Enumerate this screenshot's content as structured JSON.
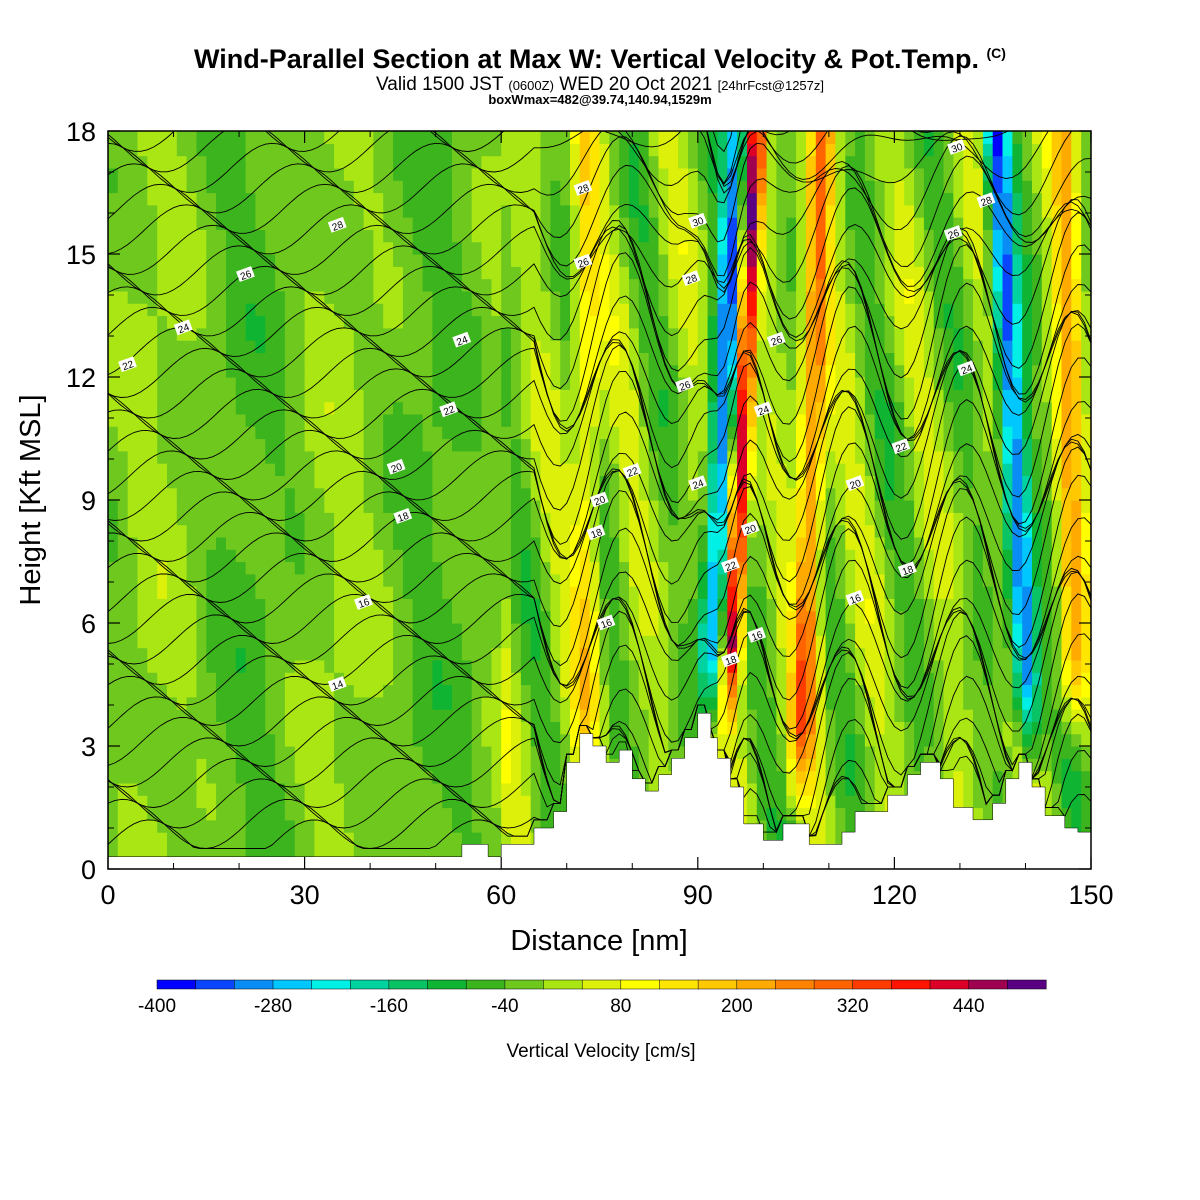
{
  "titles": {
    "main": "Wind-Parallel Section at Max W: Vertical Velocity & Pot.Temp.",
    "copyright": "(C)",
    "valid_pre": "Valid 1500 JST",
    "valid_z": "(0600Z)",
    "valid_post": "WED 20 Oct 2021",
    "forecast": "[24hrFcst@1257z]",
    "box": "boxWmax=482@39.74,140.94,1529m"
  },
  "chart_data": {
    "type": "heatmap",
    "xlabel": "Distance [nm]",
    "ylabel": "Height [Kft MSL]",
    "xlim": [
      0,
      150
    ],
    "ylim": [
      0,
      18
    ],
    "xticks": [
      "0",
      "30",
      "60",
      "90",
      "120",
      "150"
    ],
    "yticks": [
      "0",
      "3",
      "6",
      "9",
      "12",
      "15",
      "18"
    ],
    "colorbar": {
      "label": "Vertical Velocity [cm/s]",
      "levels": [
        -400,
        -360,
        -320,
        -280,
        -240,
        -200,
        -160,
        -120,
        -80,
        -40,
        0,
        40,
        80,
        120,
        160,
        200,
        240,
        280,
        320,
        360,
        400,
        440,
        480
      ],
      "tick_labels": [
        "-400",
        "-280",
        "-160",
        "-40",
        "80",
        "200",
        "320",
        "440"
      ],
      "colors": [
        "#0000ff",
        "#0a46ff",
        "#0a8cf5",
        "#00c8ff",
        "#00f0e6",
        "#00d2a0",
        "#0ac364",
        "#0fb432",
        "#3cb41e",
        "#6ec81e",
        "#aae614",
        "#dcf00a",
        "#ffff00",
        "#ffe600",
        "#ffc800",
        "#ffaa00",
        "#ff8200",
        "#ff6400",
        "#ff3c00",
        "#ff1400",
        "#dc0028",
        "#a00050",
        "#5a0082"
      ]
    },
    "terrain_kft": [
      [
        0,
        0.3
      ],
      [
        9,
        0.3
      ],
      [
        22,
        0.3
      ],
      [
        45,
        0.3
      ],
      [
        54,
        0.3
      ],
      [
        54,
        0.6
      ],
      [
        58,
        0.6
      ],
      [
        58,
        0.3
      ],
      [
        60,
        0.3
      ],
      [
        60,
        0.6
      ],
      [
        65,
        0.6
      ],
      [
        65,
        1.0
      ],
      [
        68,
        1.0
      ],
      [
        68,
        1.4
      ],
      [
        70,
        1.4
      ],
      [
        70,
        2.6
      ],
      [
        72,
        2.6
      ],
      [
        72,
        3.3
      ],
      [
        74,
        3.3
      ],
      [
        74,
        3.0
      ],
      [
        76,
        3.0
      ],
      [
        76,
        2.6
      ],
      [
        78,
        2.6
      ],
      [
        78,
        2.9
      ],
      [
        80,
        2.9
      ],
      [
        80,
        2.2
      ],
      [
        82,
        2.2
      ],
      [
        82,
        1.9
      ],
      [
        84,
        1.9
      ],
      [
        84,
        2.3
      ],
      [
        86,
        2.3
      ],
      [
        86,
        2.7
      ],
      [
        88,
        2.7
      ],
      [
        88,
        3.2
      ],
      [
        90,
        3.2
      ],
      [
        90,
        3.8
      ],
      [
        92,
        3.8
      ],
      [
        92,
        3.2
      ],
      [
        93,
        3.2
      ],
      [
        93,
        2.7
      ],
      [
        95,
        2.7
      ],
      [
        95,
        2.0
      ],
      [
        97,
        2.0
      ],
      [
        97,
        1.1
      ],
      [
        100,
        1.1
      ],
      [
        100,
        0.7
      ],
      [
        103,
        0.7
      ],
      [
        103,
        1.1
      ],
      [
        107,
        1.1
      ],
      [
        107,
        0.6
      ],
      [
        112,
        0.6
      ],
      [
        112,
        0.9
      ],
      [
        114,
        0.9
      ],
      [
        114,
        1.4
      ],
      [
        119,
        1.4
      ],
      [
        119,
        1.8
      ],
      [
        122,
        1.8
      ],
      [
        122,
        2.3
      ],
      [
        124,
        2.3
      ],
      [
        124,
        2.6
      ],
      [
        127,
        2.6
      ],
      [
        127,
        2.2
      ],
      [
        129,
        2.2
      ],
      [
        129,
        1.5
      ],
      [
        132,
        1.5
      ],
      [
        132,
        1.2
      ],
      [
        135,
        1.2
      ],
      [
        135,
        1.6
      ],
      [
        137,
        1.6
      ],
      [
        137,
        2.2
      ],
      [
        139,
        2.2
      ],
      [
        139,
        2.6
      ],
      [
        141,
        2.6
      ],
      [
        141,
        2.0
      ],
      [
        143,
        2.0
      ],
      [
        143,
        1.3
      ],
      [
        146,
        1.3
      ],
      [
        146,
        1.0
      ],
      [
        148,
        1.0
      ],
      [
        148,
        0.9
      ],
      [
        150,
        0.9
      ]
    ],
    "vertical_velocity_features": [
      {
        "name": "updraft",
        "x_nm": 96,
        "tilt_nm_per_kft": 0.28,
        "base_kft": 3.5,
        "peak_cm_s": 482
      },
      {
        "name": "downdraft",
        "x_nm": 93,
        "tilt_nm_per_kft": 0.31,
        "base_kft": 3.5,
        "peak_cm_s": -300
      },
      {
        "name": "updraft",
        "x_nm": 107,
        "tilt_nm_per_kft": 0.2,
        "base_kft": 1.5,
        "peak_cm_s": 280
      },
      {
        "name": "downdraft",
        "x_nm": 139,
        "tilt_nm_per_kft": -0.35,
        "base_kft": 2.5,
        "peak_cm_s": -330
      },
      {
        "name": "updraft",
        "x_nm": 147,
        "tilt_nm_per_kft": -0.1,
        "base_kft": 3.0,
        "peak_cm_s": 200
      },
      {
        "name": "updraft",
        "x_nm": 73,
        "tilt_nm_per_kft": 0.0,
        "base_kft": 2.0,
        "peak_cm_s": 150
      }
    ],
    "contour_labels": [
      {
        "text": "30",
        "x": 129.5,
        "y": 17.6
      },
      {
        "text": "28",
        "x": 72.5,
        "y": 16.6
      },
      {
        "text": "28",
        "x": 134,
        "y": 16.3
      },
      {
        "text": "30",
        "x": 90,
        "y": 15.8
      },
      {
        "text": "28",
        "x": 35,
        "y": 15.7
      },
      {
        "text": "26",
        "x": 129,
        "y": 15.5
      },
      {
        "text": "26",
        "x": 72.5,
        "y": 14.8
      },
      {
        "text": "26",
        "x": 21,
        "y": 14.5
      },
      {
        "text": "28",
        "x": 89,
        "y": 14.4
      },
      {
        "text": "24",
        "x": 11.5,
        "y": 13.2
      },
      {
        "text": "24",
        "x": 54,
        "y": 12.9
      },
      {
        "text": "26",
        "x": 102,
        "y": 12.9
      },
      {
        "text": "22",
        "x": 3,
        "y": 12.3
      },
      {
        "text": "24",
        "x": 131,
        "y": 12.2
      },
      {
        "text": "26",
        "x": 88,
        "y": 11.8
      },
      {
        "text": "22",
        "x": 52,
        "y": 11.2
      },
      {
        "text": "24",
        "x": 100,
        "y": 11.2
      },
      {
        "text": "22",
        "x": 121,
        "y": 10.3
      },
      {
        "text": "20",
        "x": 44,
        "y": 9.8
      },
      {
        "text": "22",
        "x": 80,
        "y": 9.7
      },
      {
        "text": "24",
        "x": 90,
        "y": 9.4
      },
      {
        "text": "20",
        "x": 114,
        "y": 9.4
      },
      {
        "text": "20",
        "x": 75,
        "y": 9.0
      },
      {
        "text": "18",
        "x": 45,
        "y": 8.6
      },
      {
        "text": "18",
        "x": 74.5,
        "y": 8.2
      },
      {
        "text": "20",
        "x": 98,
        "y": 8.3
      },
      {
        "text": "22",
        "x": 95,
        "y": 7.4
      },
      {
        "text": "18",
        "x": 122,
        "y": 7.3
      },
      {
        "text": "16",
        "x": 39,
        "y": 6.5
      },
      {
        "text": "16",
        "x": 114,
        "y": 6.6
      },
      {
        "text": "16",
        "x": 76,
        "y": 6.0
      },
      {
        "text": "16",
        "x": 99,
        "y": 5.7
      },
      {
        "text": "18",
        "x": 95,
        "y": 5.1
      },
      {
        "text": "14",
        "x": 35,
        "y": 4.5
      }
    ],
    "grid": false
  }
}
